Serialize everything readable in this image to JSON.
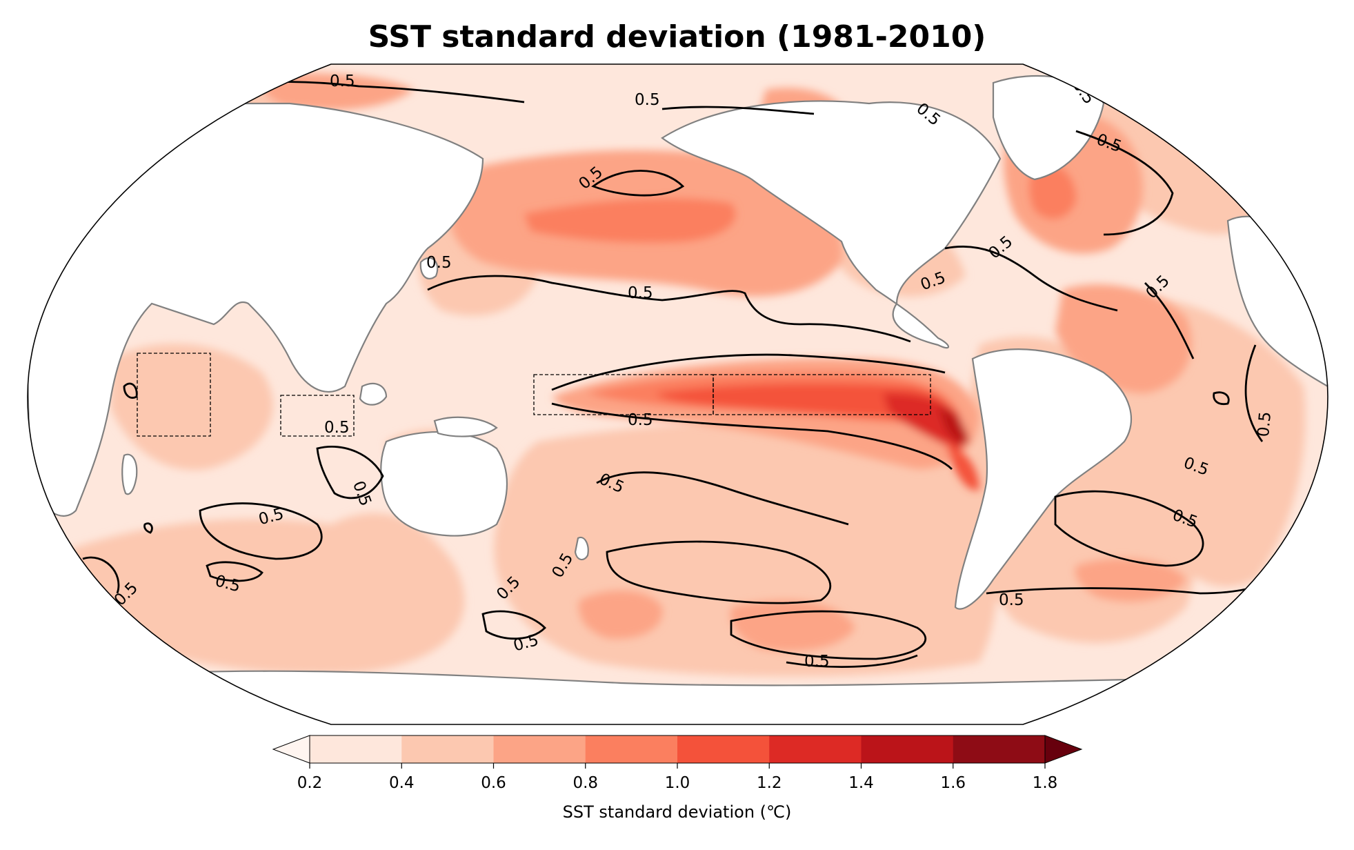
{
  "title": "SST standard deviation (1981-2010)",
  "contour_label": "0.5",
  "colorbar": {
    "label": "SST standard deviation (℃)",
    "ticks": [
      "0.2",
      "0.4",
      "0.6",
      "0.8",
      "1.0",
      "1.2",
      "1.4",
      "1.6",
      "1.8"
    ],
    "colors": [
      "#fee7dc",
      "#fcc8b0",
      "#fca486",
      "#fb7f5f",
      "#f4523a",
      "#dd2a25",
      "#bb1419",
      "#8e0c15"
    ],
    "extend": "both",
    "under_color": "#fff5f0",
    "over_color": "#67000d"
  },
  "map": {
    "projection": "Robinson",
    "central_longitude": "Pacific-centered (~180)",
    "ocean_field": "SST standard deviation",
    "contour_level": 0.5,
    "land_color": "#ffffff",
    "coastline_color": "#808080",
    "index_boxes": [
      "Western Indian Ocean",
      "Eastern Indian Ocean",
      "Nino 4",
      "Nino 3"
    ]
  }
}
